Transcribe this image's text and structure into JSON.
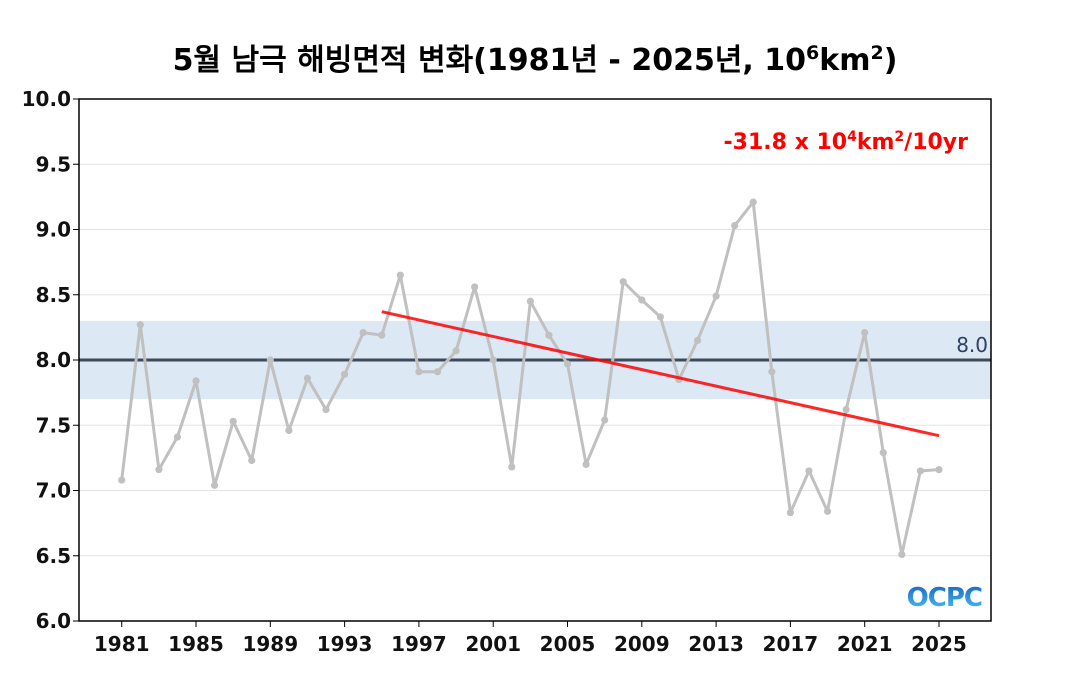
{
  "chart_data": {
    "type": "line",
    "title": {
      "main": "5월 남극 해빙면적 변화(1981년 - 2025년, 10",
      "sup1": "6",
      "mid": "km",
      "sup2": "2",
      "end": ")"
    },
    "ylim": [
      6.0,
      10.0
    ],
    "xlim": [
      1978.7,
      2027.8
    ],
    "yticks": [
      "6.0",
      "6.5",
      "7.0",
      "7.5",
      "8.0",
      "8.5",
      "9.0",
      "9.5",
      "10.0"
    ],
    "xticks": [
      "1981",
      "1985",
      "1989",
      "1993",
      "1997",
      "2001",
      "2005",
      "2009",
      "2013",
      "2017",
      "2021",
      "2025"
    ],
    "grid": true,
    "series": [
      {
        "color": "#c0c0c0",
        "x": [
          1981,
          1982,
          1983,
          1984,
          1985,
          1986,
          1987,
          1988,
          1989,
          1990,
          1991,
          1992,
          1993,
          1994,
          1995,
          1996,
          1997,
          1998,
          1999,
          2000,
          2001,
          2002,
          2003,
          2004,
          2005,
          2006,
          2007,
          2008,
          2009,
          2010,
          2011,
          2012,
          2013,
          2014,
          2015,
          2016,
          2017,
          2018,
          2019,
          2020,
          2021,
          2022,
          2023,
          2024,
          2025
        ],
        "values": [
          7.08,
          8.27,
          7.16,
          7.41,
          7.84,
          7.04,
          7.53,
          7.23,
          8.0,
          7.46,
          7.86,
          7.62,
          7.89,
          8.21,
          8.19,
          8.65,
          7.91,
          7.91,
          8.07,
          8.56,
          8.0,
          7.18,
          8.45,
          8.19,
          7.97,
          7.2,
          7.54,
          8.6,
          8.46,
          8.33,
          7.85,
          8.15,
          8.49,
          9.03,
          9.21,
          7.91,
          6.83,
          7.15,
          6.84,
          7.62,
          8.21,
          7.29,
          6.51,
          7.15,
          7.16
        ]
      }
    ],
    "reference": {
      "value": 8.0,
      "label": "8.0",
      "band": [
        7.7,
        8.3
      ],
      "band_color": "#dce8f3",
      "line_color": "#3e4a5a"
    },
    "trend": {
      "x": [
        1995,
        2025
      ],
      "y": [
        8.37,
        7.42
      ],
      "color": "#ff0000",
      "label_main": "-31.8 x 10",
      "label_sup1": "4",
      "label_mid": "km",
      "label_sup2": "2",
      "label_end": "/10yr"
    }
  },
  "logo": {
    "text": "OCPC",
    "color_top": "#1565c0",
    "color_bottom": "#4fc3f7"
  }
}
